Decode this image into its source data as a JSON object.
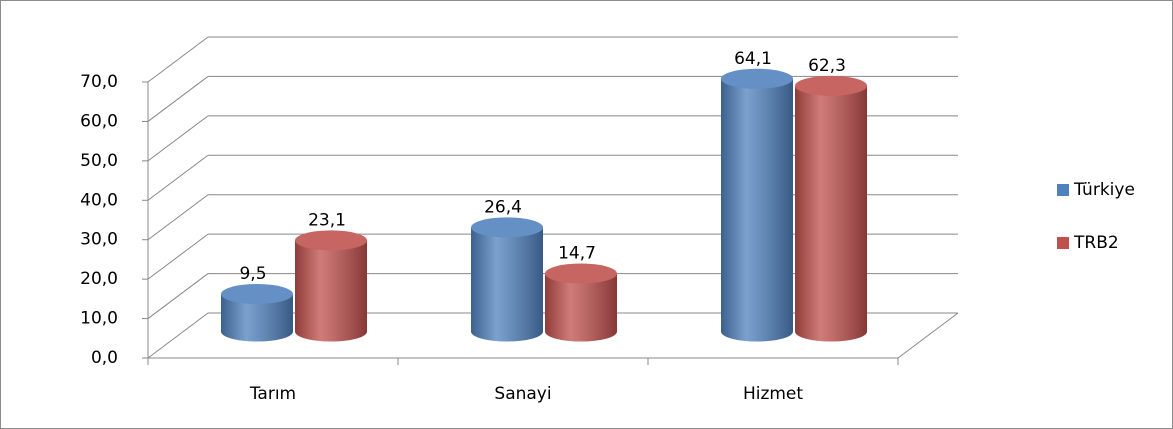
{
  "chart_data": {
    "type": "bar3d",
    "categories": [
      "Tarım",
      "Sanayi",
      "Hizmet"
    ],
    "series": [
      {
        "name": "Türkiye",
        "color": "#4f81bd",
        "values": [
          9.5,
          26.4,
          64.1
        ],
        "value_labels": [
          "9,5",
          "26,4",
          "64,1"
        ]
      },
      {
        "name": "TRB2",
        "color": "#c0504d",
        "values": [
          23.1,
          14.7,
          62.3
        ],
        "value_labels": [
          "23,1",
          "14,7",
          "62,3"
        ]
      }
    ],
    "ylim": [
      0,
      70
    ],
    "yticks": [
      {
        "value": 0,
        "label": "0,0"
      },
      {
        "value": 10,
        "label": "10,0"
      },
      {
        "value": 20,
        "label": "20,0"
      },
      {
        "value": 30,
        "label": "30,0"
      },
      {
        "value": 40,
        "label": "40,0"
      },
      {
        "value": 50,
        "label": "50,0"
      },
      {
        "value": 60,
        "label": "60,0"
      },
      {
        "value": 70,
        "label": "70,0"
      }
    ],
    "grid": true,
    "legend": "right"
  }
}
